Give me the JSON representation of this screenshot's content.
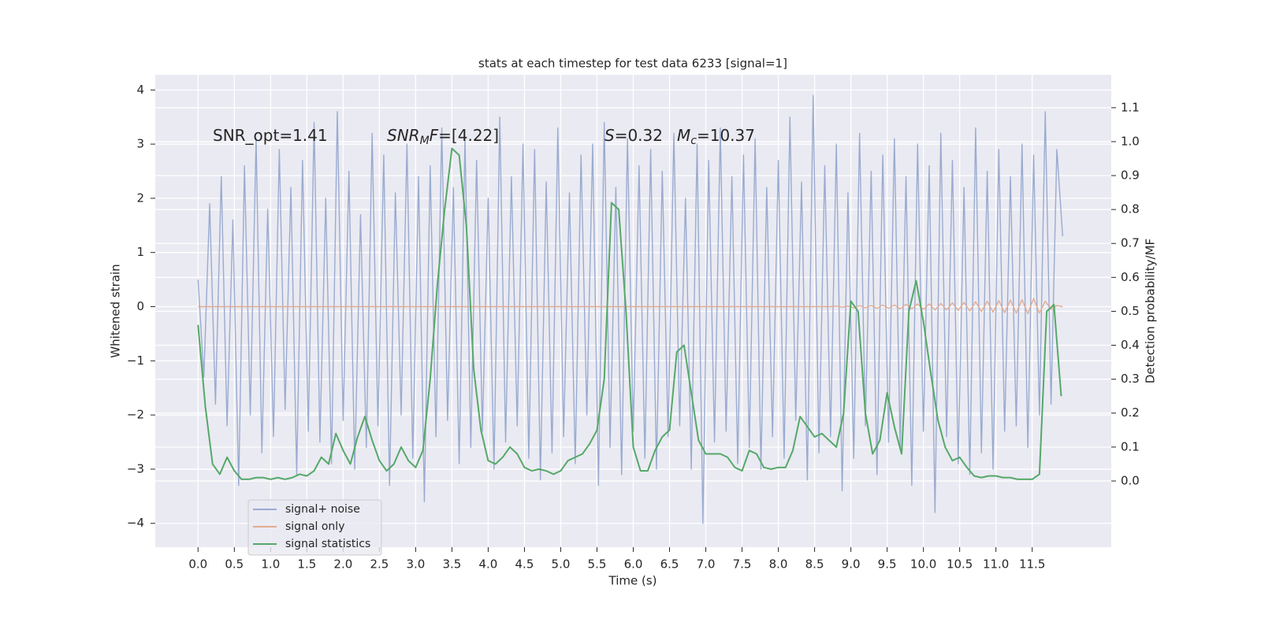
{
  "chart_data": {
    "type": "line",
    "title": "stats at each timestep for test data 6233 [signal=1]",
    "xlabel": "Time (s)",
    "ylabel": "Whitened strain",
    "y2label": "Detection probability/MF",
    "annotations": [
      [
        {
          "text": "SNR_opt=1.41",
          "italic": false,
          "sub": false
        }
      ],
      [
        {
          "text": "SNR",
          "italic": true,
          "sub": false
        },
        {
          "text": "M",
          "italic": true,
          "sub": true
        },
        {
          "text": "F",
          "italic": true,
          "sub": false
        },
        {
          "text": "=[4.22]",
          "italic": false,
          "sub": false
        }
      ],
      [
        {
          "text": "S",
          "italic": true,
          "sub": false
        },
        {
          "text": "=0.32",
          "italic": false,
          "sub": false
        }
      ],
      [
        {
          "text": "M",
          "italic": true,
          "sub": false
        },
        {
          "text": "c",
          "italic": true,
          "sub": true
        },
        {
          "text": "=10.37",
          "italic": false,
          "sub": false
        }
      ]
    ],
    "xlim": [
      -0.59,
      12.59
    ],
    "ylim": [
      -4.44,
      4.28
    ],
    "y2lim": [
      -0.195,
      1.197
    ],
    "xticks": [
      {
        "value": 0,
        "label": "0.0"
      },
      0.5,
      {
        "value": 1,
        "label": "1.0"
      },
      1.5,
      {
        "value": 2,
        "label": "2.0"
      },
      2.5,
      {
        "value": 3,
        "label": "3.0"
      },
      3.5,
      {
        "value": 4,
        "label": "4.0"
      },
      4.5,
      {
        "value": 5,
        "label": "5.0"
      },
      5.5,
      {
        "value": 6,
        "label": "6.0"
      },
      6.5,
      {
        "value": 7,
        "label": "7.0"
      },
      7.5,
      {
        "value": 8,
        "label": "8.0"
      },
      8.5,
      {
        "value": 9,
        "label": "9.0"
      },
      9.5,
      {
        "value": 10,
        "label": "10.0"
      },
      10.5,
      {
        "value": 11,
        "label": "11.0"
      },
      11.5
    ],
    "yticks": [
      {
        "value": -4,
        "label": "−4"
      },
      {
        "value": -3,
        "label": "−3"
      },
      {
        "value": -2,
        "label": "−2"
      },
      {
        "value": -1,
        "label": "−1"
      },
      0,
      1,
      2,
      3,
      4
    ],
    "y2ticks": [
      {
        "value": 0,
        "label": "0.0"
      },
      0.1,
      0.2,
      0.3,
      0.4,
      0.5,
      0.6,
      0.7,
      0.8,
      0.9,
      {
        "value": 1,
        "label": "1.0"
      },
      1.1
    ],
    "grid": true,
    "legend": "lower left",
    "series": [
      {
        "name": "signal+ noise",
        "color": "#9aabd0",
        "x": [
          0,
          0.08,
          0.16,
          0.24,
          0.32,
          0.4,
          0.48,
          0.56,
          0.64,
          0.72,
          0.8,
          0.88,
          0.96,
          1.04,
          1.12,
          1.2,
          1.28,
          1.36,
          1.44,
          1.52,
          1.6,
          1.68,
          1.76,
          1.84,
          1.92,
          2,
          2.08,
          2.16,
          2.24,
          2.32,
          2.4,
          2.48,
          2.56,
          2.64,
          2.72,
          2.8,
          2.88,
          2.96,
          3.04,
          3.12,
          3.2,
          3.28,
          3.36,
          3.44,
          3.52,
          3.6,
          3.68,
          3.76,
          3.84,
          3.92,
          4,
          4.08,
          4.16,
          4.24,
          4.32,
          4.4,
          4.48,
          4.56,
          4.64,
          4.72,
          4.8,
          4.88,
          4.96,
          5.04,
          5.12,
          5.2,
          5.28,
          5.36,
          5.44,
          5.52,
          5.6,
          5.68,
          5.76,
          5.84,
          5.92,
          6,
          6.08,
          6.16,
          6.24,
          6.32,
          6.4,
          6.48,
          6.56,
          6.64,
          6.72,
          6.8,
          6.88,
          6.96,
          7.04,
          7.12,
          7.2,
          7.28,
          7.36,
          7.44,
          7.52,
          7.6,
          7.68,
          7.76,
          7.84,
          7.92,
          8,
          8.08,
          8.16,
          8.24,
          8.32,
          8.4,
          8.48,
          8.56,
          8.64,
          8.72,
          8.8,
          8.88,
          8.96,
          9.04,
          9.12,
          9.2,
          9.28,
          9.36,
          9.44,
          9.52,
          9.6,
          9.68,
          9.76,
          9.84,
          9.92,
          10,
          10.08,
          10.16,
          10.24,
          10.32,
          10.4,
          10.48,
          10.56,
          10.64,
          10.72,
          10.8,
          10.88,
          10.96,
          11.04,
          11.12,
          11.2,
          11.28,
          11.36,
          11.44,
          11.52,
          11.6,
          11.68,
          11.76,
          11.84,
          11.92
        ],
        "values": [
          0.5,
          -1.3,
          1.9,
          -1.8,
          2.4,
          -2.2,
          1.6,
          -3.3,
          2.6,
          -2.0,
          3.1,
          -2.7,
          1.8,
          -2.4,
          2.9,
          -1.9,
          2.2,
          -3.1,
          2.7,
          -2.3,
          3.4,
          -2.5,
          2.0,
          -2.9,
          3.6,
          -2.1,
          2.5,
          -3.0,
          1.7,
          -2.6,
          3.2,
          -2.2,
          2.8,
          -3.3,
          2.1,
          -2.0,
          3.0,
          -2.8,
          2.4,
          -3.6,
          2.6,
          -2.4,
          3.3,
          -2.1,
          2.2,
          -2.9,
          3.1,
          -2.6,
          2.7,
          -2.3,
          2.0,
          -3.0,
          3.5,
          -2.5,
          2.4,
          -2.2,
          3.0,
          -2.8,
          2.9,
          -3.2,
          2.3,
          -2.7,
          3.3,
          -2.4,
          2.1,
          -2.9,
          2.8,
          -2.0,
          3.0,
          -3.3,
          3.4,
          -2.6,
          2.2,
          -3.1,
          3.1,
          -2.3,
          2.6,
          -2.8,
          2.9,
          -3.0,
          2.5,
          -2.4,
          3.2,
          -2.2,
          2.0,
          -3.0,
          3.0,
          -4.0,
          2.7,
          -2.5,
          3.3,
          -2.3,
          2.4,
          -2.9,
          2.8,
          -2.6,
          3.1,
          -3.0,
          2.2,
          -2.4,
          2.7,
          -2.8,
          3.5,
          -2.1,
          2.3,
          -3.2,
          3.9,
          -2.7,
          2.6,
          -2.4,
          3.0,
          -3.4,
          2.1,
          -2.8,
          3.2,
          -2.2,
          2.5,
          -3.1,
          2.8,
          -2.5,
          3.1,
          -2.6,
          2.4,
          -3.3,
          3.0,
          -2.3,
          2.6,
          -3.8,
          3.2,
          -2.4,
          2.7,
          -2.9,
          2.2,
          -3.1,
          3.3,
          -2.7,
          2.5,
          -3.0,
          2.9,
          -2.3,
          2.4,
          -2.2,
          3.0,
          -2.6,
          2.8,
          -2.0,
          3.6,
          -1.8,
          2.9,
          1.3
        ]
      },
      {
        "name": "signal only",
        "color": "#e3ab91",
        "x": [
          0,
          0.08,
          0.16,
          0.24,
          0.32,
          0.4,
          0.48,
          0.56,
          0.64,
          0.72,
          0.8,
          0.88,
          0.96,
          1.04,
          1.12,
          1.2,
          1.28,
          1.36,
          1.44,
          1.52,
          1.6,
          1.68,
          1.76,
          1.84,
          1.92,
          2,
          2.08,
          2.16,
          2.24,
          2.32,
          2.4,
          2.48,
          2.56,
          2.64,
          2.72,
          2.8,
          2.88,
          2.96,
          3.04,
          3.12,
          3.2,
          3.28,
          3.36,
          3.44,
          3.52,
          3.6,
          3.68,
          3.76,
          3.84,
          3.92,
          4,
          4.08,
          4.16,
          4.24,
          4.32,
          4.4,
          4.48,
          4.56,
          4.64,
          4.72,
          4.8,
          4.88,
          4.96,
          5.04,
          5.12,
          5.2,
          5.28,
          5.36,
          5.44,
          5.52,
          5.6,
          5.68,
          5.76,
          5.84,
          5.92,
          6,
          6.08,
          6.16,
          6.24,
          6.32,
          6.4,
          6.48,
          6.56,
          6.64,
          6.72,
          6.8,
          6.88,
          6.96,
          7.04,
          7.12,
          7.2,
          7.28,
          7.36,
          7.44,
          7.52,
          7.6,
          7.68,
          7.76,
          7.84,
          7.92,
          8,
          8.08,
          8.16,
          8.24,
          8.32,
          8.4,
          8.48,
          8.56,
          8.64,
          8.72,
          8.8,
          8.88,
          8.96,
          9.04,
          9.12,
          9.2,
          9.28,
          9.36,
          9.44,
          9.52,
          9.6,
          9.68,
          9.76,
          9.84,
          9.92,
          10,
          10.08,
          10.16,
          10.24,
          10.32,
          10.4,
          10.48,
          10.56,
          10.64,
          10.72,
          10.8,
          10.88,
          10.96,
          11.04,
          11.12,
          11.2,
          11.28,
          11.36,
          11.44,
          11.52,
          11.6,
          11.68,
          11.76,
          11.84,
          11.92
        ],
        "values": [
          0,
          0,
          0,
          0,
          0,
          0,
          0,
          0,
          0,
          0,
          0,
          0,
          0,
          0,
          0,
          0,
          0,
          0,
          0,
          0,
          0,
          0,
          0,
          0,
          0,
          0,
          0,
          0,
          0,
          0,
          0,
          0,
          0,
          0,
          0,
          0,
          0,
          0,
          0,
          0,
          0,
          0,
          0,
          0,
          0,
          0,
          0,
          0,
          0,
          0,
          0,
          0,
          0,
          0,
          0,
          0,
          0,
          0,
          0,
          0,
          0,
          0,
          0,
          0,
          0,
          0,
          0,
          0,
          0,
          0,
          0,
          0,
          0,
          0,
          0,
          0,
          0,
          0,
          0,
          0,
          0,
          0,
          0,
          0,
          0,
          0,
          0,
          0,
          0,
          0,
          0,
          0,
          0,
          0,
          0,
          0,
          0,
          0,
          0,
          0,
          0,
          0,
          0,
          0,
          0,
          0,
          0,
          0,
          0,
          0,
          0.01,
          -0.01,
          0.01,
          -0.02,
          0.02,
          -0.02,
          0.02,
          -0.03,
          0.03,
          -0.03,
          0.03,
          -0.04,
          0.04,
          -0.04,
          0.05,
          -0.05,
          0.05,
          -0.06,
          0.06,
          -0.06,
          0.07,
          -0.07,
          0.08,
          -0.08,
          0.09,
          -0.09,
          0.1,
          -0.1,
          0.11,
          -0.11,
          0.12,
          -0.12,
          0.13,
          -0.13,
          0.15,
          -0.12,
          0.1,
          -0.05,
          0.02,
          0
        ]
      },
      {
        "name": "signal statistics",
        "color": "#55a868",
        "axis": "y2",
        "x": [
          0,
          0.1,
          0.2,
          0.3,
          0.4,
          0.5,
          0.6,
          0.7,
          0.8,
          0.9,
          1,
          1.1,
          1.2,
          1.3,
          1.4,
          1.5,
          1.6,
          1.7,
          1.8,
          1.9,
          2,
          2.1,
          2.2,
          2.3,
          2.4,
          2.5,
          2.6,
          2.7,
          2.8,
          2.9,
          3,
          3.1,
          3.2,
          3.3,
          3.4,
          3.5,
          3.6,
          3.7,
          3.8,
          3.9,
          4,
          4.1,
          4.2,
          4.3,
          4.4,
          4.5,
          4.6,
          4.7,
          4.8,
          4.9,
          5,
          5.1,
          5.2,
          5.3,
          5.4,
          5.5,
          5.6,
          5.7,
          5.8,
          5.9,
          6,
          6.1,
          6.2,
          6.3,
          6.4,
          6.5,
          6.6,
          6.7,
          6.8,
          6.9,
          7,
          7.1,
          7.2,
          7.3,
          7.4,
          7.5,
          7.6,
          7.7,
          7.8,
          7.9,
          8,
          8.1,
          8.2,
          8.3,
          8.4,
          8.5,
          8.6,
          8.7,
          8.8,
          8.9,
          9,
          9.1,
          9.2,
          9.3,
          9.4,
          9.5,
          9.6,
          9.7,
          9.8,
          9.9,
          10,
          10.1,
          10.2,
          10.3,
          10.4,
          10.5,
          10.6,
          10.7,
          10.8,
          10.9,
          11,
          11.1,
          11.2,
          11.3,
          11.4,
          11.5,
          11.6,
          11.7,
          11.8,
          11.9
        ],
        "values": [
          0.46,
          0.22,
          0.05,
          0.02,
          0.07,
          0.03,
          0.005,
          0.005,
          0.01,
          0.01,
          0.005,
          0.01,
          0.005,
          0.01,
          0.02,
          0.015,
          0.03,
          0.07,
          0.05,
          0.14,
          0.09,
          0.05,
          0.13,
          0.19,
          0.12,
          0.06,
          0.03,
          0.05,
          0.1,
          0.06,
          0.04,
          0.09,
          0.3,
          0.58,
          0.8,
          0.98,
          0.96,
          0.75,
          0.33,
          0.15,
          0.06,
          0.05,
          0.07,
          0.1,
          0.08,
          0.04,
          0.03,
          0.035,
          0.03,
          0.02,
          0.03,
          0.06,
          0.07,
          0.08,
          0.11,
          0.15,
          0.3,
          0.82,
          0.8,
          0.5,
          0.1,
          0.03,
          0.03,
          0.09,
          0.13,
          0.15,
          0.38,
          0.4,
          0.26,
          0.12,
          0.08,
          0.08,
          0.08,
          0.07,
          0.04,
          0.03,
          0.09,
          0.08,
          0.04,
          0.035,
          0.04,
          0.04,
          0.09,
          0.19,
          0.16,
          0.13,
          0.14,
          0.12,
          0.1,
          0.2,
          0.53,
          0.5,
          0.2,
          0.08,
          0.12,
          0.26,
          0.16,
          0.08,
          0.5,
          0.59,
          0.47,
          0.32,
          0.18,
          0.1,
          0.06,
          0.07,
          0.04,
          0.015,
          0.01,
          0.015,
          0.015,
          0.01,
          0.01,
          0.005,
          0.005,
          0.005,
          0.02,
          0.5,
          0.52,
          0.25
        ]
      }
    ]
  }
}
